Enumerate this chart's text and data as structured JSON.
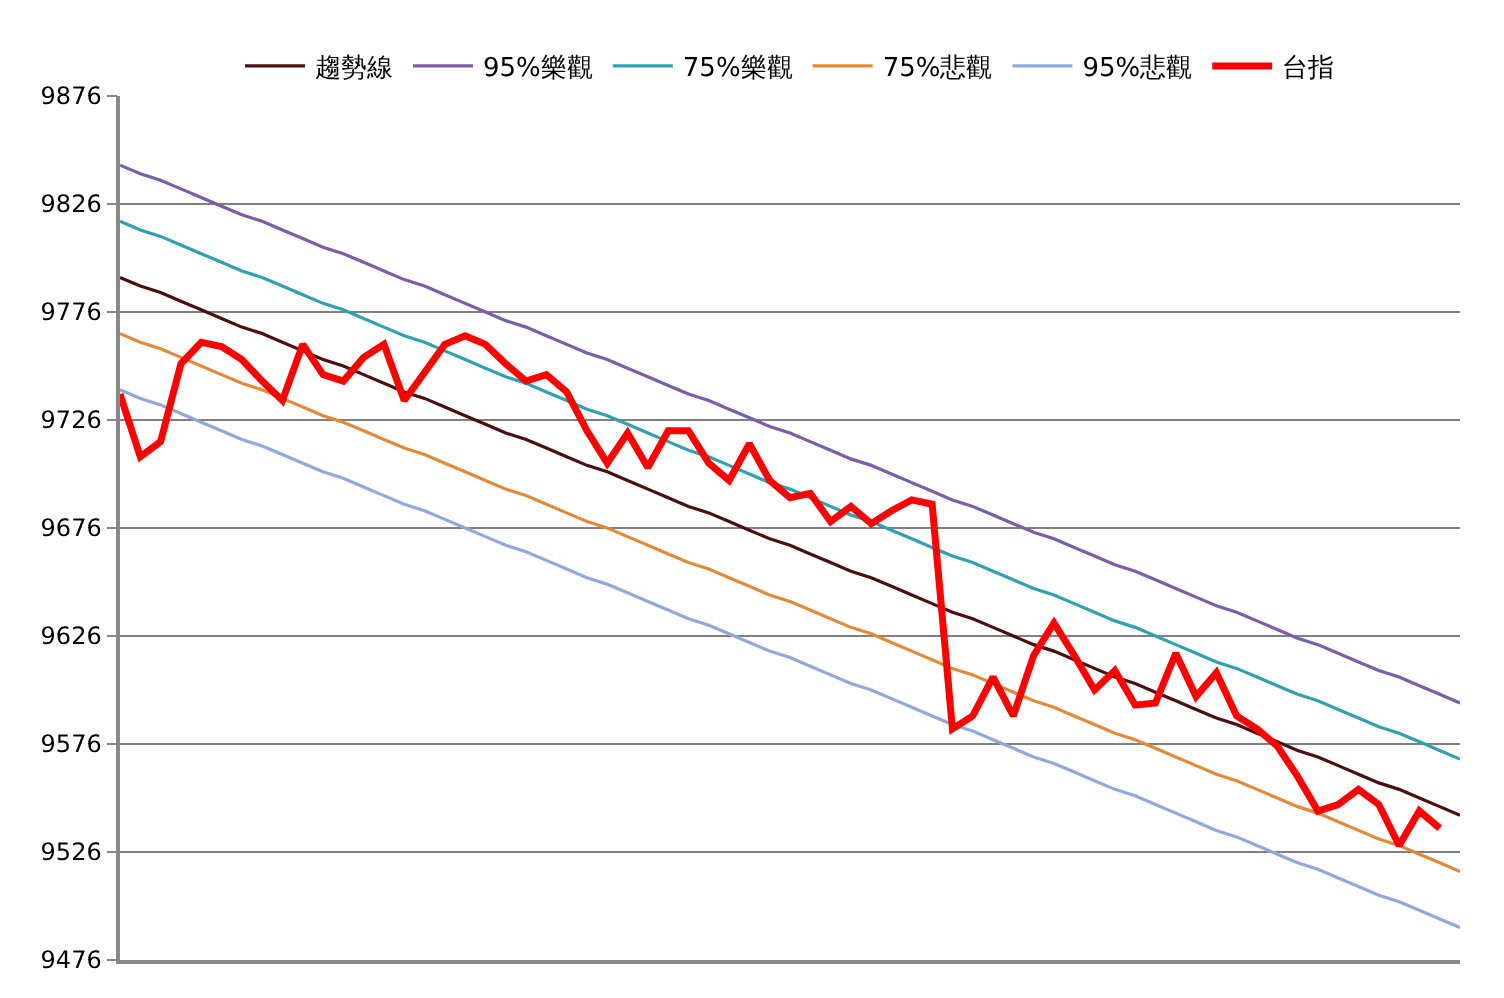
{
  "chart_data": {
    "type": "line",
    "categories": [
      null,
      null,
      null,
      null,
      null,
      null,
      null,
      null,
      null,
      null,
      null,
      null,
      null,
      null,
      null,
      null,
      null,
      null,
      null,
      null,
      null,
      null,
      null,
      null,
      null,
      null,
      null,
      null,
      null,
      null,
      null,
      null,
      null,
      null,
      null,
      null,
      null,
      null,
      null,
      null,
      null,
      null,
      null,
      null,
      null,
      null,
      null,
      null,
      null,
      null,
      null,
      null,
      null,
      null,
      null,
      null,
      null,
      null,
      null,
      null,
      null,
      null,
      null,
      null,
      null,
      null,
      null
    ],
    "series": [
      {
        "name": "台指",
        "color": "#ff0000",
        "values": [
          9738,
          9709,
          9716,
          9752,
          9762,
          9760,
          9754,
          9744,
          9735,
          9761,
          9747,
          9744,
          9755,
          9761,
          9735,
          9748,
          9761,
          9765,
          9761,
          9752,
          9744,
          9747,
          9739,
          9721,
          9706,
          9720,
          9704,
          9721,
          9721,
          9706,
          9698,
          9715,
          9698,
          9690,
          9692,
          9679,
          9686,
          9678,
          9684,
          9689,
          9687,
          9583,
          9589,
          9607,
          9589,
          9617,
          9632,
          9617,
          9601,
          9610,
          9594,
          9595,
          9618,
          9598,
          9609,
          9589,
          9583,
          9575,
          9561,
          9545,
          9548,
          9555,
          9548,
          9529,
          9545,
          9537,
          null
        ]
      },
      {
        "name": "趨勢線",
        "color": "#4a1010",
        "values": [
          9792,
          9788,
          9785,
          9781,
          9777,
          9773,
          9769,
          9766,
          9762,
          9758,
          9754,
          9751,
          9747,
          9743,
          9739,
          9736,
          9732,
          9728,
          9724,
          9720,
          9717,
          9713,
          9709,
          9705,
          9702,
          9698,
          9694,
          9690,
          9686,
          9683,
          9679,
          9675,
          9671,
          9668,
          9664,
          9660,
          9656,
          9653,
          9649,
          9645,
          9641,
          9637,
          9634,
          9630,
          9626,
          9622,
          9619,
          9615,
          9611,
          9607,
          9604,
          9600,
          9596,
          9592,
          9588,
          9585,
          9581,
          9577,
          9573,
          9570,
          9566,
          9562,
          9558,
          9555,
          9551,
          9547,
          9543
        ]
      },
      {
        "name": "95%樂觀",
        "color": "#7b5ea7",
        "values": [
          9844,
          9840,
          9837,
          9833,
          9829,
          9825,
          9821,
          9818,
          9814,
          9810,
          9806,
          9803,
          9799,
          9795,
          9791,
          9788,
          9784,
          9780,
          9776,
          9772,
          9769,
          9765,
          9761,
          9757,
          9754,
          9750,
          9746,
          9742,
          9738,
          9735,
          9731,
          9727,
          9723,
          9720,
          9716,
          9712,
          9708,
          9705,
          9701,
          9697,
          9693,
          9689,
          9686,
          9682,
          9678,
          9674,
          9671,
          9667,
          9663,
          9659,
          9656,
          9652,
          9648,
          9644,
          9640,
          9637,
          9633,
          9629,
          9625,
          9622,
          9618,
          9614,
          9610,
          9607,
          9603,
          9599,
          9595
        ]
      },
      {
        "name": "75%樂觀",
        "color": "#31a0b0",
        "values": [
          9818,
          9814,
          9811,
          9807,
          9803,
          9799,
          9795,
          9792,
          9788,
          9784,
          9780,
          9777,
          9773,
          9769,
          9765,
          9762,
          9758,
          9754,
          9750,
          9746,
          9743,
          9739,
          9735,
          9731,
          9728,
          9724,
          9720,
          9716,
          9712,
          9709,
          9705,
          9701,
          9697,
          9694,
          9690,
          9686,
          9682,
          9679,
          9675,
          9671,
          9667,
          9663,
          9660,
          9656,
          9652,
          9648,
          9645,
          9641,
          9637,
          9633,
          9630,
          9626,
          9622,
          9618,
          9614,
          9611,
          9607,
          9603,
          9599,
          9596,
          9592,
          9588,
          9584,
          9581,
          9577,
          9573,
          9569
        ]
      },
      {
        "name": "75%悲觀",
        "color": "#e08a3c",
        "values": [
          9766,
          9762,
          9759,
          9755,
          9751,
          9747,
          9743,
          9740,
          9736,
          9732,
          9728,
          9725,
          9721,
          9717,
          9713,
          9710,
          9706,
          9702,
          9698,
          9694,
          9691,
          9687,
          9683,
          9679,
          9676,
          9672,
          9668,
          9664,
          9660,
          9657,
          9653,
          9649,
          9645,
          9642,
          9638,
          9634,
          9630,
          9627,
          9623,
          9619,
          9615,
          9611,
          9608,
          9604,
          9600,
          9596,
          9593,
          9589,
          9585,
          9581,
          9578,
          9574,
          9570,
          9566,
          9562,
          9559,
          9555,
          9551,
          9547,
          9544,
          9540,
          9536,
          9532,
          9529,
          9525,
          9521,
          9517
        ]
      },
      {
        "name": "95%悲觀",
        "color": "#8faad8",
        "values": [
          9740,
          9736,
          9733,
          9729,
          9725,
          9721,
          9717,
          9714,
          9710,
          9706,
          9702,
          9699,
          9695,
          9691,
          9687,
          9684,
          9680,
          9676,
          9672,
          9668,
          9665,
          9661,
          9657,
          9653,
          9650,
          9646,
          9642,
          9638,
          9634,
          9631,
          9627,
          9623,
          9619,
          9616,
          9612,
          9608,
          9604,
          9601,
          9597,
          9593,
          9589,
          9585,
          9582,
          9578,
          9574,
          9570,
          9567,
          9563,
          9559,
          9555,
          9552,
          9548,
          9544,
          9540,
          9536,
          9533,
          9529,
          9525,
          9521,
          9518,
          9514,
          9510,
          9506,
          9503,
          9499,
          9495,
          9491
        ]
      }
    ],
    "ylim": [
      9476,
      9876
    ],
    "yticks": [
      9476,
      9526,
      9576,
      9626,
      9676,
      9726,
      9776,
      9826,
      9876
    ],
    "grid": "y",
    "legend": "top",
    "tick_labels": "y",
    "marker": "none",
    "line_style": "solid"
  }
}
